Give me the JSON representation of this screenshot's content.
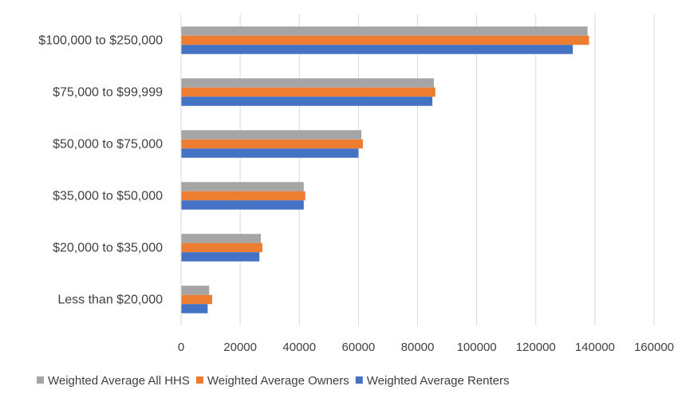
{
  "chart_data": {
    "type": "bar",
    "orientation": "horizontal",
    "title": "",
    "xlabel": "",
    "ylabel": "",
    "categories": [
      "$100,000 to $250,000",
      "$75,000 to $99,999",
      "$50,000 to $75,000",
      "$35,000 to $50,000",
      "$20,000  to $35,000",
      "Less than $20,000"
    ],
    "series": [
      {
        "name": "Weighted Average All HHS",
        "color": "#a5a5a5",
        "values": [
          137500,
          85500,
          61000,
          41500,
          27000,
          9500
        ]
      },
      {
        "name": "Weighted Average Owners",
        "color": "#ed7d31",
        "values": [
          138000,
          86000,
          61500,
          42000,
          27500,
          10500
        ]
      },
      {
        "name": "Weighted Average Renters",
        "color": "#4472c4",
        "values": [
          132500,
          85000,
          60000,
          41500,
          26500,
          9000
        ]
      }
    ],
    "xlim": [
      0,
      160000
    ],
    "x_ticks": [
      0,
      20000,
      40000,
      60000,
      80000,
      100000,
      120000,
      140000,
      160000
    ],
    "x_tick_labels": [
      "0",
      "20000",
      "40000",
      "60000",
      "80000",
      "100000",
      "120000",
      "140000",
      "160000"
    ],
    "grid": "vertical",
    "legend": "bottom"
  }
}
